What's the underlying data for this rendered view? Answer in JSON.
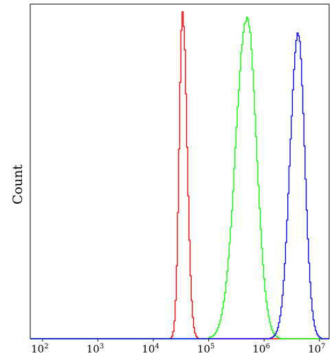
{
  "chart_data": {
    "type": "line",
    "title": "",
    "xlabel": "",
    "ylabel": "Count",
    "x_scale": "log",
    "xlim": [
      60,
      15000000
    ],
    "ylim": [
      0,
      1.02
    ],
    "grid": false,
    "legend": "none",
    "x_ticks": [
      {
        "base": "10",
        "exp": "2",
        "value": 100
      },
      {
        "base": "10",
        "exp": "3",
        "value": 1000
      },
      {
        "base": "10",
        "exp": "4",
        "value": 10000
      },
      {
        "base": "10",
        "exp": "5",
        "value": 100000
      },
      {
        "base": "10",
        "exp": "6",
        "value": 1000000
      },
      {
        "base": "10",
        "exp": "7",
        "value": 10000000
      }
    ],
    "series": [
      {
        "color": "#ff0000",
        "peak_x": 33000,
        "peak_y": 1.0,
        "log_sigma_left": 0.06,
        "log_sigma_right": 0.08
      },
      {
        "color": "#00ff00",
        "peak_x": 480000,
        "peak_y": 0.985,
        "log_sigma_left": 0.2,
        "log_sigma_right": 0.17
      },
      {
        "color": "#0000ff",
        "peak_x": 4000000,
        "peak_y": 0.94,
        "log_sigma_left": 0.14,
        "log_sigma_right": 0.12
      }
    ]
  }
}
